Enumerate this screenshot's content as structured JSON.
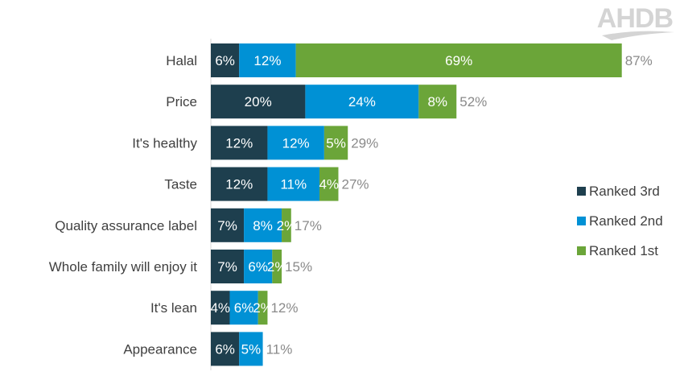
{
  "logo": {
    "text": "AHDB"
  },
  "chart_data": {
    "type": "bar",
    "orientation": "horizontal",
    "stacked": true,
    "categories": [
      "Halal",
      "Price",
      "It's healthy",
      "Taste",
      "Quality assurance label",
      "Whole family will enjoy it",
      "It's lean",
      "Appearance"
    ],
    "series": [
      {
        "name": "Ranked 3rd",
        "color": "#1e3f4e",
        "values": [
          6,
          20,
          12,
          12,
          7,
          7,
          4,
          6
        ]
      },
      {
        "name": "Ranked 2nd",
        "color": "#0091d5",
        "values": [
          12,
          24,
          12,
          11,
          8,
          6,
          6,
          5
        ]
      },
      {
        "name": "Ranked 1st",
        "color": "#6ba539",
        "values": [
          69,
          8,
          5,
          4,
          2,
          2,
          2,
          0
        ]
      }
    ],
    "totals": [
      87,
      52,
      29,
      27,
      17,
      15,
      12,
      11
    ],
    "value_format": "percent",
    "xlim": [
      0,
      100
    ],
    "grid": false,
    "legend_placement": "right"
  }
}
